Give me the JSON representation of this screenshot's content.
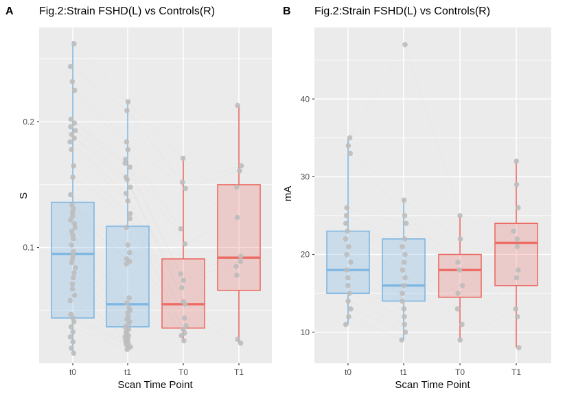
{
  "figure": {
    "background": "#ffffff",
    "colors": {
      "panel_bg": "#ebebeb",
      "grid": "#ffffff",
      "point": "#bdbdbd",
      "axis_text": "#4d4d4d",
      "tick_mark": "#333333",
      "blue_stroke": "#7db7e3",
      "blue_fill": "rgba(125,183,227,0.30)",
      "red_stroke": "#ec6a63",
      "red_fill": "rgba(236,106,99,0.25)"
    }
  },
  "chart_data": [
    {
      "type": "boxplot",
      "panel_tag": "A",
      "title": "Fig.2:Strain FSHD(L) vs Controls(R)",
      "xlabel": "Scan Time Point",
      "ylabel": "S",
      "categories": [
        "t0",
        "t1",
        "T0",
        "T1"
      ],
      "category_color_group": [
        "blue",
        "blue",
        "red",
        "red"
      ],
      "ylim": [
        0.008,
        0.275
      ],
      "yticks": [
        {
          "value": 0.1,
          "label": "0.1"
        },
        {
          "value": 0.2,
          "label": "0.2"
        }
      ],
      "yticks_minor": [
        0.05,
        0.15,
        0.25
      ],
      "grid": true,
      "legend": "none",
      "boxes": [
        {
          "category": "t0",
          "whisker_low": 0.016,
          "q1": 0.044,
          "median": 0.095,
          "q3": 0.136,
          "whisker_high": 0.264
        },
        {
          "category": "t1",
          "whisker_low": 0.019,
          "q1": 0.037,
          "median": 0.055,
          "q3": 0.117,
          "whisker_high": 0.216
        },
        {
          "category": "T0",
          "whisker_low": 0.026,
          "q1": 0.036,
          "median": 0.055,
          "q3": 0.091,
          "whisker_high": 0.171
        },
        {
          "category": "T1",
          "whisker_low": 0.024,
          "q1": 0.066,
          "median": 0.092,
          "q3": 0.15,
          "whisker_high": 0.213
        }
      ],
      "jitter_points": {
        "t0": [
          0.262,
          0.244,
          0.232,
          0.225,
          0.202,
          0.199,
          0.196,
          0.193,
          0.19,
          0.187,
          0.184,
          0.178,
          0.165,
          0.156,
          0.142,
          0.134,
          0.131,
          0.128,
          0.125,
          0.122,
          0.119,
          0.116,
          0.113,
          0.11,
          0.107,
          0.102,
          0.097,
          0.094,
          0.091,
          0.088,
          0.084,
          0.08,
          0.076,
          0.071,
          0.067,
          0.062,
          0.058,
          0.047,
          0.044,
          0.041,
          0.037,
          0.033,
          0.029,
          0.025,
          0.02,
          0.016
        ],
        "t1": [
          0.216,
          0.209,
          0.184,
          0.178,
          0.17,
          0.167,
          0.164,
          0.156,
          0.154,
          0.148,
          0.143,
          0.137,
          0.127,
          0.123,
          0.116,
          0.102,
          0.096,
          0.091,
          0.089,
          0.087,
          0.06,
          0.056,
          0.052,
          0.05,
          0.048,
          0.045,
          0.043,
          0.041,
          0.039,
          0.037,
          0.035,
          0.033,
          0.032,
          0.03,
          0.029,
          0.027,
          0.026,
          0.024,
          0.023,
          0.021,
          0.019
        ],
        "T0": [
          0.171,
          0.152,
          0.147,
          0.115,
          0.103,
          0.079,
          0.074,
          0.068,
          0.057,
          0.055,
          0.044,
          0.038,
          0.035,
          0.032,
          0.03,
          0.026
        ],
        "T1": [
          0.213,
          0.165,
          0.161,
          0.148,
          0.124,
          0.093,
          0.089,
          0.085,
          0.078,
          0.027,
          0.024
        ]
      }
    },
    {
      "type": "boxplot",
      "panel_tag": "B",
      "title": "Fig.2:Strain FSHD(L) vs Controls(R)",
      "xlabel": "Scan Time Point",
      "ylabel": "mA",
      "categories": [
        "t0",
        "t1",
        "T0",
        "T1"
      ],
      "category_color_group": [
        "blue",
        "blue",
        "red",
        "red"
      ],
      "ylim": [
        6,
        49.2
      ],
      "yticks": [
        {
          "value": 10,
          "label": "10"
        },
        {
          "value": 20,
          "label": "20"
        },
        {
          "value": 30,
          "label": "30"
        },
        {
          "value": 40,
          "label": "40"
        }
      ],
      "yticks_minor": [
        15,
        25,
        35,
        45
      ],
      "grid": true,
      "legend": "none",
      "boxes": [
        {
          "category": "t0",
          "whisker_low": 11,
          "q1": 15,
          "median": 18,
          "q3": 23,
          "whisker_high": 35
        },
        {
          "category": "t1",
          "whisker_low": 9,
          "q1": 14,
          "median": 16,
          "q3": 22,
          "whisker_high": 27
        },
        {
          "category": "T0",
          "whisker_low": 9,
          "q1": 14.5,
          "median": 18,
          "q3": 20,
          "whisker_high": 25
        },
        {
          "category": "T1",
          "whisker_low": 8,
          "q1": 16,
          "median": 21.5,
          "q3": 24,
          "whisker_high": 32
        }
      ],
      "jitter_points": {
        "t0": [
          35,
          34,
          33,
          26,
          25,
          24,
          23,
          22,
          21,
          20,
          19,
          18,
          17,
          16,
          15,
          14,
          13,
          12,
          11
        ],
        "t1": [
          47,
          27,
          25,
          24,
          22,
          21,
          20,
          19,
          18,
          17,
          16,
          15,
          14,
          13,
          12,
          11,
          10,
          9
        ],
        "T0": [
          25,
          22,
          19,
          18,
          16,
          15,
          13,
          11,
          9
        ],
        "T1": [
          32,
          29,
          26,
          23,
          22,
          21,
          18,
          17,
          13,
          12,
          8
        ]
      }
    }
  ]
}
